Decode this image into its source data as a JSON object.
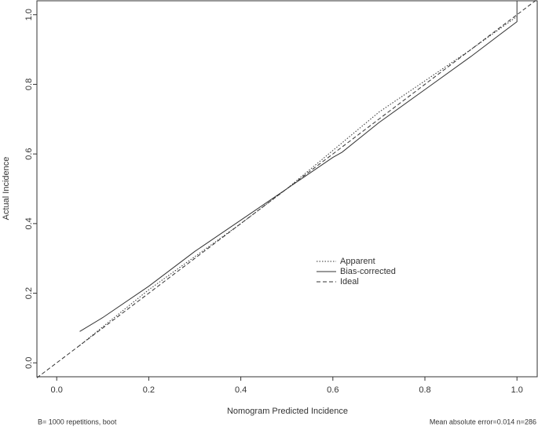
{
  "chart_data": {
    "type": "line",
    "xlabel": "Nomogram Predicted Incidence",
    "ylabel": "Actual Incidence",
    "footnote_left": "B= 1000 repetitions, boot",
    "footnote_right": "Mean absolute error=0.014 n=286",
    "xlim": [
      -0.043,
      1.044
    ],
    "ylim": [
      -0.04,
      1.04
    ],
    "xticks": [
      {
        "value": 0,
        "label": "0.0"
      },
      0.2,
      0.4,
      0.6,
      0.8,
      {
        "value": 1,
        "label": "1.0"
      }
    ],
    "yticks": [
      {
        "value": 0,
        "label": "0.0"
      },
      0.2,
      0.4,
      0.6,
      0.8,
      {
        "value": 1,
        "label": "1.0"
      }
    ],
    "series": [
      {
        "name": "Apparent",
        "color": "#333333",
        "linestyle": "dotted",
        "x": [
          0.05,
          0.2,
          0.4,
          0.5,
          0.6,
          0.7,
          0.8,
          0.9,
          1.0
        ],
        "values": [
          0.05,
          0.21,
          0.4,
          0.5,
          0.61,
          0.72,
          0.81,
          0.9,
          0.995
        ]
      },
      {
        "name": "Bias-corrected",
        "color": "#333333",
        "linestyle": "solid",
        "x": [
          0.05,
          0.1,
          0.2,
          0.3,
          0.4,
          0.5,
          0.6,
          0.62,
          0.7,
          0.8,
          0.9,
          1.0,
          1.0
        ],
        "values": [
          0.09,
          0.13,
          0.22,
          0.32,
          0.41,
          0.5,
          0.59,
          0.605,
          0.69,
          0.785,
          0.88,
          0.98,
          1.04
        ]
      },
      {
        "name": "Ideal",
        "color": "#333333",
        "linestyle": "dashed",
        "x": [
          -0.043,
          1.044
        ],
        "values": [
          -0.043,
          1.044
        ]
      }
    ]
  }
}
